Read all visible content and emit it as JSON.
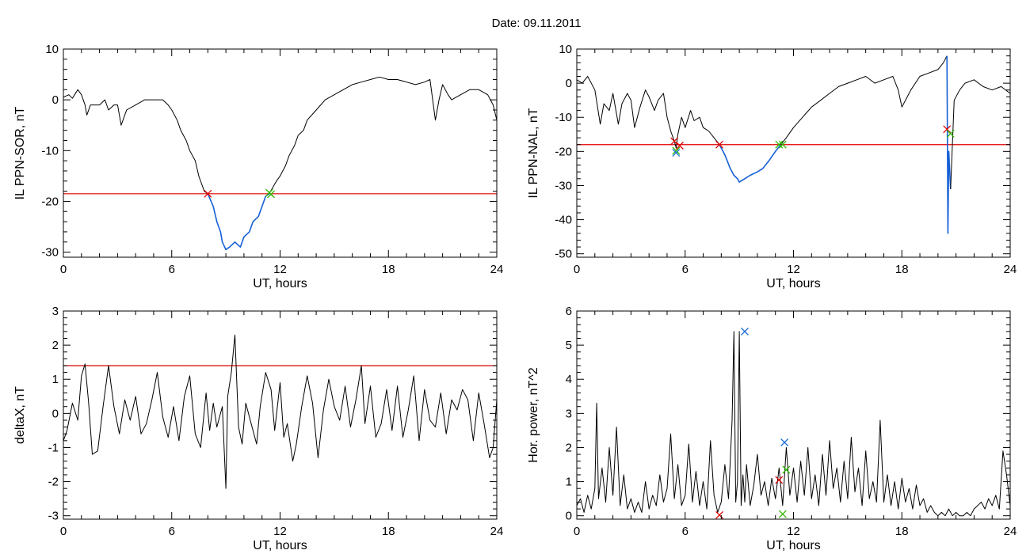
{
  "title": "Date:  09.11.2011",
  "colors": {
    "trace": "#000000",
    "highlight": "#1560d6",
    "threshold": "#e00000",
    "marker_red": "#e00000",
    "marker_green": "#2fb800",
    "marker_blue": "#1f6fd6"
  },
  "chart_data": [
    {
      "type": "line",
      "panel": "top-left",
      "xlabel": "UT, hours",
      "ylabel": "IL PPN-SOR, nT",
      "xlim": [
        0,
        24
      ],
      "ylim": [
        -31,
        10
      ],
      "xticks": [
        0,
        6,
        12,
        18,
        24
      ],
      "yticks": [
        -30,
        -20,
        -10,
        0,
        10
      ],
      "threshold": -18.5,
      "series": [
        {
          "role": "trace",
          "x": [
            0,
            0.3,
            0.5,
            0.8,
            1.0,
            1.2,
            1.3,
            1.5,
            2.0,
            2.3,
            2.5,
            2.8,
            3.0,
            3.2,
            3.5,
            4.0,
            4.5,
            5.0,
            5.5,
            5.8,
            6.0,
            6.3,
            6.5,
            6.8,
            7.0,
            7.3,
            7.5,
            7.8,
            8.0
          ],
          "y": [
            0.5,
            1,
            0.3,
            2,
            1,
            -1,
            -3,
            -1,
            -1,
            0,
            -2,
            -1,
            -1,
            -5,
            -2,
            -1,
            0,
            0,
            0,
            -1,
            -2,
            -4,
            -6,
            -8,
            -10,
            -12,
            -15,
            -18,
            -18.5
          ]
        },
        {
          "role": "highlight",
          "x": [
            8.0,
            8.3,
            8.5,
            8.7,
            8.8,
            9.0,
            9.2,
            9.5,
            9.8,
            10.0,
            10.3,
            10.5,
            10.8,
            11.0,
            11.2,
            11.4
          ],
          "y": [
            -18.5,
            -21,
            -24,
            -26,
            -28,
            -29.5,
            -29,
            -28,
            -29,
            -27,
            -26,
            -24,
            -23,
            -21,
            -19,
            -18.5
          ]
        },
        {
          "role": "trace",
          "x": [
            11.4,
            11.8,
            12.0,
            12.3,
            12.5,
            12.8,
            13.0,
            13.3,
            13.5,
            14.0,
            14.5,
            15.0,
            15.5,
            16.0,
            16.5,
            17.0,
            17.5,
            18.0,
            18.5,
            19.0,
            19.5,
            20.0,
            20.3,
            20.6,
            20.8,
            21.0,
            21.3,
            21.5,
            22.0,
            22.5,
            23.0,
            23.5,
            23.8,
            24.0
          ],
          "y": [
            -18.5,
            -16,
            -15,
            -13,
            -11,
            -9,
            -7,
            -6,
            -4,
            -2,
            0,
            1,
            2,
            3,
            3.5,
            4,
            4.5,
            4,
            4,
            3.5,
            3,
            3.5,
            4,
            -4,
            0,
            3,
            1,
            0,
            1,
            2,
            2,
            1,
            -1,
            -4
          ]
        }
      ],
      "markers": [
        {
          "x": 8.0,
          "y": -18.5,
          "color": "red"
        },
        {
          "x": 11.4,
          "y": -18.3,
          "color": "green"
        },
        {
          "x": 11.5,
          "y": -18.6,
          "color": "green"
        }
      ]
    },
    {
      "type": "line",
      "panel": "top-right",
      "xlabel": "UT, hours",
      "ylabel": "IL PPN-NAL, nT",
      "xlim": [
        0,
        24
      ],
      "ylim": [
        -51,
        10
      ],
      "xticks": [
        0,
        6,
        12,
        18,
        24
      ],
      "yticks": [
        -50,
        -40,
        -30,
        -20,
        -10,
        0,
        10
      ],
      "threshold": -18,
      "series": [
        {
          "role": "trace",
          "x": [
            0,
            0.3,
            0.6,
            1.0,
            1.3,
            1.5,
            1.8,
            2.0,
            2.3,
            2.5,
            2.8,
            3.0,
            3.2,
            3.5,
            3.8,
            4.0,
            4.3,
            4.5,
            4.8,
            5.0,
            5.2,
            5.4,
            5.5
          ],
          "y": [
            1,
            0,
            2,
            -2,
            -12,
            -6,
            -8,
            -3,
            -12,
            -6,
            -3,
            -5,
            -13,
            -7,
            -2,
            -4,
            -8,
            -5,
            -3,
            -10,
            -14,
            -17,
            -19
          ]
        },
        {
          "role": "trace",
          "x": [
            5.5,
            5.6,
            5.8,
            6.0,
            6.3,
            6.5,
            6.8,
            7.0,
            7.3,
            7.6,
            7.9
          ],
          "y": [
            -19,
            -15,
            -10,
            -13,
            -8,
            -11,
            -10,
            -13,
            -14,
            -16,
            -18
          ]
        },
        {
          "role": "highlight",
          "x": [
            7.9,
            8.2,
            8.5,
            8.7,
            8.9,
            9.0,
            9.3,
            9.6,
            10.0,
            10.3,
            10.6,
            11.0,
            11.3
          ],
          "y": [
            -18,
            -21,
            -25,
            -27,
            -28,
            -29,
            -28,
            -27,
            -26,
            -25,
            -23,
            -20,
            -18
          ]
        },
        {
          "role": "trace",
          "x": [
            11.3,
            11.6,
            12.0,
            12.5,
            13.0,
            13.5,
            14.0,
            14.5,
            15.0,
            15.5,
            16.0,
            16.5,
            17.0,
            17.5,
            17.8,
            18.0,
            18.3,
            18.5,
            19.0,
            19.5,
            20.0,
            20.3,
            20.5
          ],
          "y": [
            -18,
            -16,
            -13,
            -10,
            -7,
            -5,
            -3,
            -1,
            0,
            1,
            2,
            0,
            1,
            2,
            -2,
            -7,
            -4,
            -2,
            2,
            3,
            4,
            6,
            8
          ]
        },
        {
          "role": "highlight",
          "x": [
            20.5,
            20.55,
            20.6,
            20.7
          ],
          "y": [
            8,
            -44,
            -20,
            -31
          ]
        },
        {
          "role": "trace",
          "x": [
            20.7,
            20.9,
            21.2,
            21.5,
            22.0,
            22.5,
            23.0,
            23.5,
            24.0
          ],
          "y": [
            -31,
            -5,
            -2,
            0,
            1,
            -1,
            -2,
            -1,
            -3
          ]
        }
      ],
      "markers": [
        {
          "x": 5.4,
          "y": -17,
          "color": "red"
        },
        {
          "x": 5.7,
          "y": -18.3,
          "color": "red"
        },
        {
          "x": 5.5,
          "y": -19.8,
          "color": "green"
        },
        {
          "x": 5.5,
          "y": -20.4,
          "color": "blue"
        },
        {
          "x": 7.9,
          "y": -18,
          "color": "red"
        },
        {
          "x": 11.2,
          "y": -18,
          "color": "green"
        },
        {
          "x": 11.4,
          "y": -18,
          "color": "green"
        },
        {
          "x": 20.5,
          "y": -13.5,
          "color": "red"
        },
        {
          "x": 20.7,
          "y": -14.8,
          "color": "green"
        }
      ]
    },
    {
      "type": "line",
      "panel": "bottom-left",
      "xlabel": "UT, hours",
      "ylabel": "deltaX, nT",
      "xlim": [
        0,
        24
      ],
      "ylim": [
        -3.1,
        3
      ],
      "xticks": [
        0,
        6,
        12,
        18,
        24
      ],
      "yticks": [
        -3,
        -2,
        -1,
        0,
        1,
        2,
        3
      ],
      "threshold": 1.4,
      "series": [
        {
          "role": "trace",
          "x": [
            0,
            0.2,
            0.5,
            0.8,
            1.0,
            1.2,
            1.4,
            1.6,
            1.9,
            2.2,
            2.5,
            2.8,
            3.1,
            3.4,
            3.7,
            4.0,
            4.3,
            4.6,
            4.9,
            5.2,
            5.5,
            5.8,
            6.1,
            6.4,
            6.7,
            7.0,
            7.3,
            7.6,
            7.9,
            8.1,
            8.3,
            8.5,
            8.8,
            9.0,
            9.1,
            9.3,
            9.5,
            9.7,
            9.9,
            10.1,
            10.4,
            10.7,
            10.9,
            11.2,
            11.5,
            11.7,
            12.0,
            12.2,
            12.4,
            12.7,
            12.9,
            13.2,
            13.5,
            13.8,
            14.1,
            14.4,
            14.7,
            15.0,
            15.3,
            15.6,
            15.9,
            16.2,
            16.5,
            16.7,
            17.0,
            17.3,
            17.6,
            17.9,
            18.2,
            18.5,
            18.8,
            19.1,
            19.4,
            19.7,
            20.0,
            20.3,
            20.6,
            20.9,
            21.2,
            21.5,
            21.8,
            22.1,
            22.4,
            22.7,
            23.0,
            23.3,
            23.6,
            23.8,
            24.0
          ],
          "y": [
            -0.8,
            -0.5,
            0.3,
            -0.2,
            1.1,
            1.45,
            0.3,
            -1.2,
            -1.1,
            0.2,
            1.4,
            0.2,
            -0.6,
            0.4,
            -0.2,
            0.5,
            -0.6,
            -0.3,
            0.4,
            1.2,
            -0.1,
            -0.7,
            0.2,
            -0.8,
            0.5,
            1.1,
            -0.6,
            -1.0,
            0.6,
            -0.5,
            0.3,
            -0.4,
            0.2,
            -2.2,
            0.5,
            1.2,
            2.3,
            -0.4,
            -0.9,
            0.3,
            -0.3,
            -0.9,
            0.2,
            1.2,
            0.7,
            -0.5,
            0.9,
            -0.7,
            -0.3,
            -1.4,
            -0.9,
            0.2,
            1.1,
            0.3,
            -1.3,
            0.1,
            1.0,
            0.2,
            -0.2,
            0.8,
            -0.4,
            0.4,
            1.4,
            -0.3,
            0.8,
            -0.7,
            -0.3,
            0.7,
            -0.5,
            0.8,
            -0.7,
            0.1,
            1.1,
            -0.8,
            0.7,
            -0.2,
            -0.4,
            0.6,
            -0.6,
            0.4,
            0.1,
            0.7,
            0.4,
            -0.8,
            0.6,
            -0.3,
            -1.3,
            -1.0,
            0.4
          ]
        }
      ],
      "markers": []
    },
    {
      "type": "line",
      "panel": "bottom-right",
      "xlabel": "UT, hours",
      "ylabel": "Hor. power, nT^2",
      "xlim": [
        0,
        24
      ],
      "ylim": [
        -0.1,
        6
      ],
      "xticks": [
        0,
        6,
        12,
        18,
        24
      ],
      "yticks": [
        0,
        1,
        2,
        3,
        4,
        5,
        6
      ],
      "series": [
        {
          "role": "trace",
          "x": [
            0,
            0.2,
            0.4,
            0.6,
            0.8,
            1.0,
            1.1,
            1.2,
            1.4,
            1.6,
            1.8,
            2.0,
            2.2,
            2.4,
            2.6,
            2.8,
            3.0,
            3.2,
            3.4,
            3.6,
            3.8,
            4.0,
            4.2,
            4.4,
            4.6,
            4.8,
            5.0,
            5.2,
            5.4,
            5.6,
            5.8,
            6.0,
            6.2,
            6.4,
            6.6,
            6.8,
            7.0,
            7.2,
            7.4,
            7.6,
            7.8,
            8.0,
            8.2,
            8.4,
            8.6,
            8.7,
            8.8,
            8.9,
            9.0,
            9.1,
            9.2,
            9.3,
            9.4,
            9.6,
            9.8,
            10.0,
            10.2,
            10.4,
            10.6,
            10.8,
            11.0,
            11.2,
            11.4,
            11.6,
            11.8,
            12.0,
            12.2,
            12.4,
            12.6,
            12.8,
            13.0,
            13.2,
            13.4,
            13.6,
            13.8,
            14.0,
            14.2,
            14.4,
            14.6,
            14.8,
            15.0,
            15.2,
            15.4,
            15.6,
            15.8,
            16.0,
            16.2,
            16.4,
            16.6,
            16.8,
            17.0,
            17.2,
            17.4,
            17.6,
            17.8,
            18.0,
            18.2,
            18.4,
            18.6,
            18.8,
            19.0,
            19.2,
            19.4,
            19.6,
            19.8,
            20.0,
            20.2,
            20.4,
            20.6,
            20.8,
            21.0,
            21.2,
            21.4,
            21.6,
            21.8,
            22.0,
            22.2,
            22.4,
            22.6,
            22.8,
            23.0,
            23.2,
            23.4,
            23.6,
            23.8,
            24.0
          ],
          "y": [
            0.3,
            0.5,
            0.1,
            0.6,
            0.2,
            0.8,
            3.3,
            0.5,
            1.4,
            0.4,
            2.0,
            0.6,
            2.6,
            0.3,
            1.2,
            0.2,
            0.5,
            0.1,
            0.4,
            0.1,
            1.0,
            0.2,
            0.6,
            0.3,
            1.2,
            0.4,
            0.8,
            2.4,
            0.5,
            1.5,
            0.3,
            0.6,
            2.1,
            0.4,
            1.3,
            0.3,
            1.0,
            0.2,
            2.2,
            0.6,
            0.1,
            0.4,
            1.5,
            0.5,
            2.8,
            5.4,
            0.4,
            1.0,
            5.4,
            0.3,
            1.2,
            0.4,
            1.5,
            0.3,
            0.9,
            1.8,
            0.6,
            1.0,
            0.3,
            1.1,
            0.5,
            1.4,
            0.3,
            2.0,
            0.6,
            1.4,
            0.4,
            1.6,
            0.6,
            2.0,
            0.5,
            1.2,
            0.3,
            1.8,
            0.6,
            2.2,
            0.8,
            1.4,
            0.4,
            1.6,
            0.5,
            2.3,
            0.7,
            1.4,
            0.3,
            1.9,
            0.5,
            1.0,
            0.4,
            2.8,
            0.4,
            1.2,
            0.3,
            1.0,
            0.2,
            1.1,
            0.4,
            0.8,
            0.2,
            0.9,
            0.3,
            0.5,
            0.1,
            0.3,
            0.1,
            0.0,
            0.1,
            0.0,
            0.2,
            0.0,
            0.1,
            0.0,
            0.0,
            0.1,
            0.0,
            0.2,
            0.3,
            0.4,
            0.2,
            0.5,
            0.3,
            0.6,
            0.2,
            1.9,
            1.2,
            0.3
          ]
        }
      ],
      "markers": [
        {
          "x": 7.9,
          "y": 0.02,
          "color": "red"
        },
        {
          "x": 9.3,
          "y": 5.4,
          "color": "blue"
        },
        {
          "x": 11.2,
          "y": 1.05,
          "color": "red"
        },
        {
          "x": 11.4,
          "y": 0.05,
          "color": "green"
        },
        {
          "x": 11.6,
          "y": 1.35,
          "color": "green"
        },
        {
          "x": 11.5,
          "y": 2.15,
          "color": "blue"
        }
      ]
    }
  ]
}
